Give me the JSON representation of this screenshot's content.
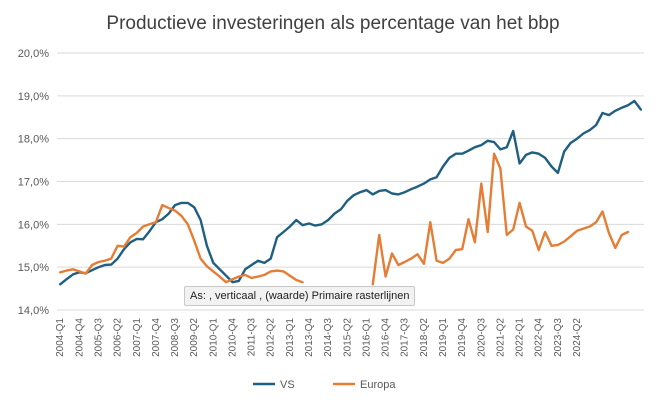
{
  "title": "Productieve investeringen als percentage van het bbp",
  "tooltip": "As: , verticaal , (waarde)  Primaire rasterlijnen",
  "colors": {
    "VS": "#1f5f82",
    "Europa": "#e57d35",
    "grid": "#d9d9d9"
  },
  "chart_data": {
    "type": "line",
    "ylim": [
      14.0,
      20.0
    ],
    "yticks": [
      "14,0%",
      "15,0%",
      "16,0%",
      "17,0%",
      "18,0%",
      "19,0%",
      "20,0%"
    ],
    "x_tick_labels": [
      "2004-Q1",
      "2004-Q4",
      "2005-Q3",
      "2006-Q2",
      "2007-Q1",
      "2007-Q4",
      "2008-Q3",
      "2009-Q2",
      "2010-Q1",
      "2010-Q4",
      "2011-Q3",
      "2012-Q2",
      "2013-Q1",
      "2013-Q4",
      "2014-Q3",
      "2015-Q2",
      "2016-Q1",
      "2016-Q4",
      "2017-Q3",
      "2018-Q2",
      "2019-Q1",
      "2019-Q4",
      "2020-Q3",
      "2021-Q2",
      "2022-Q1",
      "2022-Q4",
      "2023-Q3",
      "2024-Q2"
    ],
    "x_start": "2004-Q1",
    "legend_position": "bottom",
    "series": [
      {
        "name": "VS",
        "values": [
          14.6,
          14.72,
          14.83,
          14.88,
          14.86,
          14.93,
          15.0,
          15.05,
          15.06,
          15.2,
          15.42,
          15.58,
          15.66,
          15.65,
          15.84,
          16.05,
          16.12,
          16.25,
          16.45,
          16.5,
          16.5,
          16.4,
          16.1,
          15.5,
          15.1,
          14.95,
          14.8,
          14.65,
          14.68,
          14.95,
          15.05,
          15.15,
          15.1,
          15.2,
          15.7,
          15.82,
          15.95,
          16.1,
          15.98,
          16.02,
          15.97,
          16.0,
          16.1,
          16.25,
          16.35,
          16.55,
          16.68,
          16.75,
          16.8,
          16.7,
          16.78,
          16.8,
          16.72,
          16.7,
          16.75,
          16.82,
          16.88,
          16.95,
          17.05,
          17.1,
          17.35,
          17.55,
          17.65,
          17.65,
          17.72,
          17.8,
          17.85,
          17.95,
          17.92,
          17.75,
          17.8,
          18.18,
          17.42,
          17.62,
          17.68,
          17.65,
          17.55,
          17.35,
          17.2,
          17.7,
          17.9,
          18.0,
          18.12,
          18.2,
          18.32,
          18.6,
          18.55,
          18.65,
          18.72,
          18.78,
          18.88,
          18.68
        ],
        "color": "#1f5f82"
      },
      {
        "name": "Europa",
        "values": [
          14.88,
          14.92,
          14.95,
          14.9,
          14.85,
          15.05,
          15.12,
          15.15,
          15.2,
          15.5,
          15.48,
          15.7,
          15.8,
          15.95,
          16.0,
          16.05,
          16.45,
          16.38,
          16.32,
          16.2,
          16.0,
          15.62,
          15.2,
          15.02,
          14.9,
          14.78,
          14.65,
          14.72,
          14.78,
          14.82,
          14.75,
          14.78,
          14.82,
          14.9,
          14.92,
          14.9,
          14.8,
          14.7,
          14.65,
          null,
          null,
          null,
          null,
          null,
          null,
          null,
          null,
          null,
          null,
          14.6,
          15.75,
          14.78,
          15.32,
          15.05,
          15.12,
          15.2,
          15.3,
          15.08,
          16.05,
          15.15,
          15.1,
          15.2,
          15.4,
          15.42,
          16.12,
          15.58,
          16.95,
          15.82,
          17.65,
          17.3,
          15.75,
          15.88,
          16.5,
          15.95,
          15.85,
          15.4,
          15.82,
          15.5,
          15.52,
          15.6,
          15.72,
          15.85,
          15.9,
          15.95,
          16.05,
          16.3,
          15.8,
          15.45,
          15.75,
          15.82,
          null,
          null
        ],
        "color": "#e57d35"
      }
    ]
  }
}
